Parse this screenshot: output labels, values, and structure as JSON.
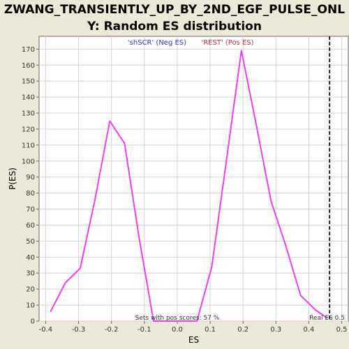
{
  "chart_data": {
    "type": "line",
    "title_line1": "ZWANG_TRANSIENTLY_UP_BY_2ND_EGF_PULSE_ONL",
    "title_line2": "Y: Random ES distribution",
    "xlabel": "ES",
    "ylabel": "P(ES)",
    "xlim": [
      -0.42,
      0.52
    ],
    "ylim": [
      0,
      178
    ],
    "x_ticks": [
      -0.4,
      -0.3,
      -0.2,
      -0.1,
      0.0,
      0.1,
      0.2,
      0.3,
      0.4,
      0.5
    ],
    "x_tick_labels": [
      "-0.4",
      "-0.3",
      "-0.2",
      "-0.1",
      "0.0",
      "0.1",
      "0.2",
      "0.3",
      "0.4",
      "0.5"
    ],
    "y_ticks": [
      0,
      10,
      20,
      30,
      40,
      50,
      60,
      70,
      80,
      90,
      100,
      110,
      120,
      130,
      140,
      150,
      160,
      170
    ],
    "y_tick_labels": [
      "0",
      "10",
      "20",
      "30",
      "40",
      "50",
      "60",
      "70",
      "80",
      "90",
      "100",
      "110",
      "120",
      "130",
      "140",
      "150",
      "160",
      "170"
    ],
    "grid": true,
    "series": [
      {
        "color": "#ee40ee",
        "x": [
          -0.385,
          -0.34,
          -0.295,
          -0.25,
          -0.205,
          -0.16,
          -0.115,
          -0.072,
          -0.03,
          0.015,
          0.06,
          0.105,
          0.15,
          0.195,
          0.24,
          0.285,
          0.33,
          0.375,
          0.42,
          0.455
        ],
        "y": [
          6,
          24,
          33,
          76,
          125,
          111,
          51,
          0,
          0,
          0,
          0,
          34,
          101,
          169,
          123,
          75,
          47,
          16,
          7,
          2
        ]
      }
    ],
    "legend": [
      {
        "label": "'shSCR' (Neg ES)",
        "color": "#3333cc"
      },
      {
        "label": "'REST' (Pos ES)",
        "color": "#cc3333"
      }
    ],
    "real_es": 0.463,
    "real_es_label": "Real ES 0.5",
    "annotation": "Sets with pos scores: 57 %"
  }
}
